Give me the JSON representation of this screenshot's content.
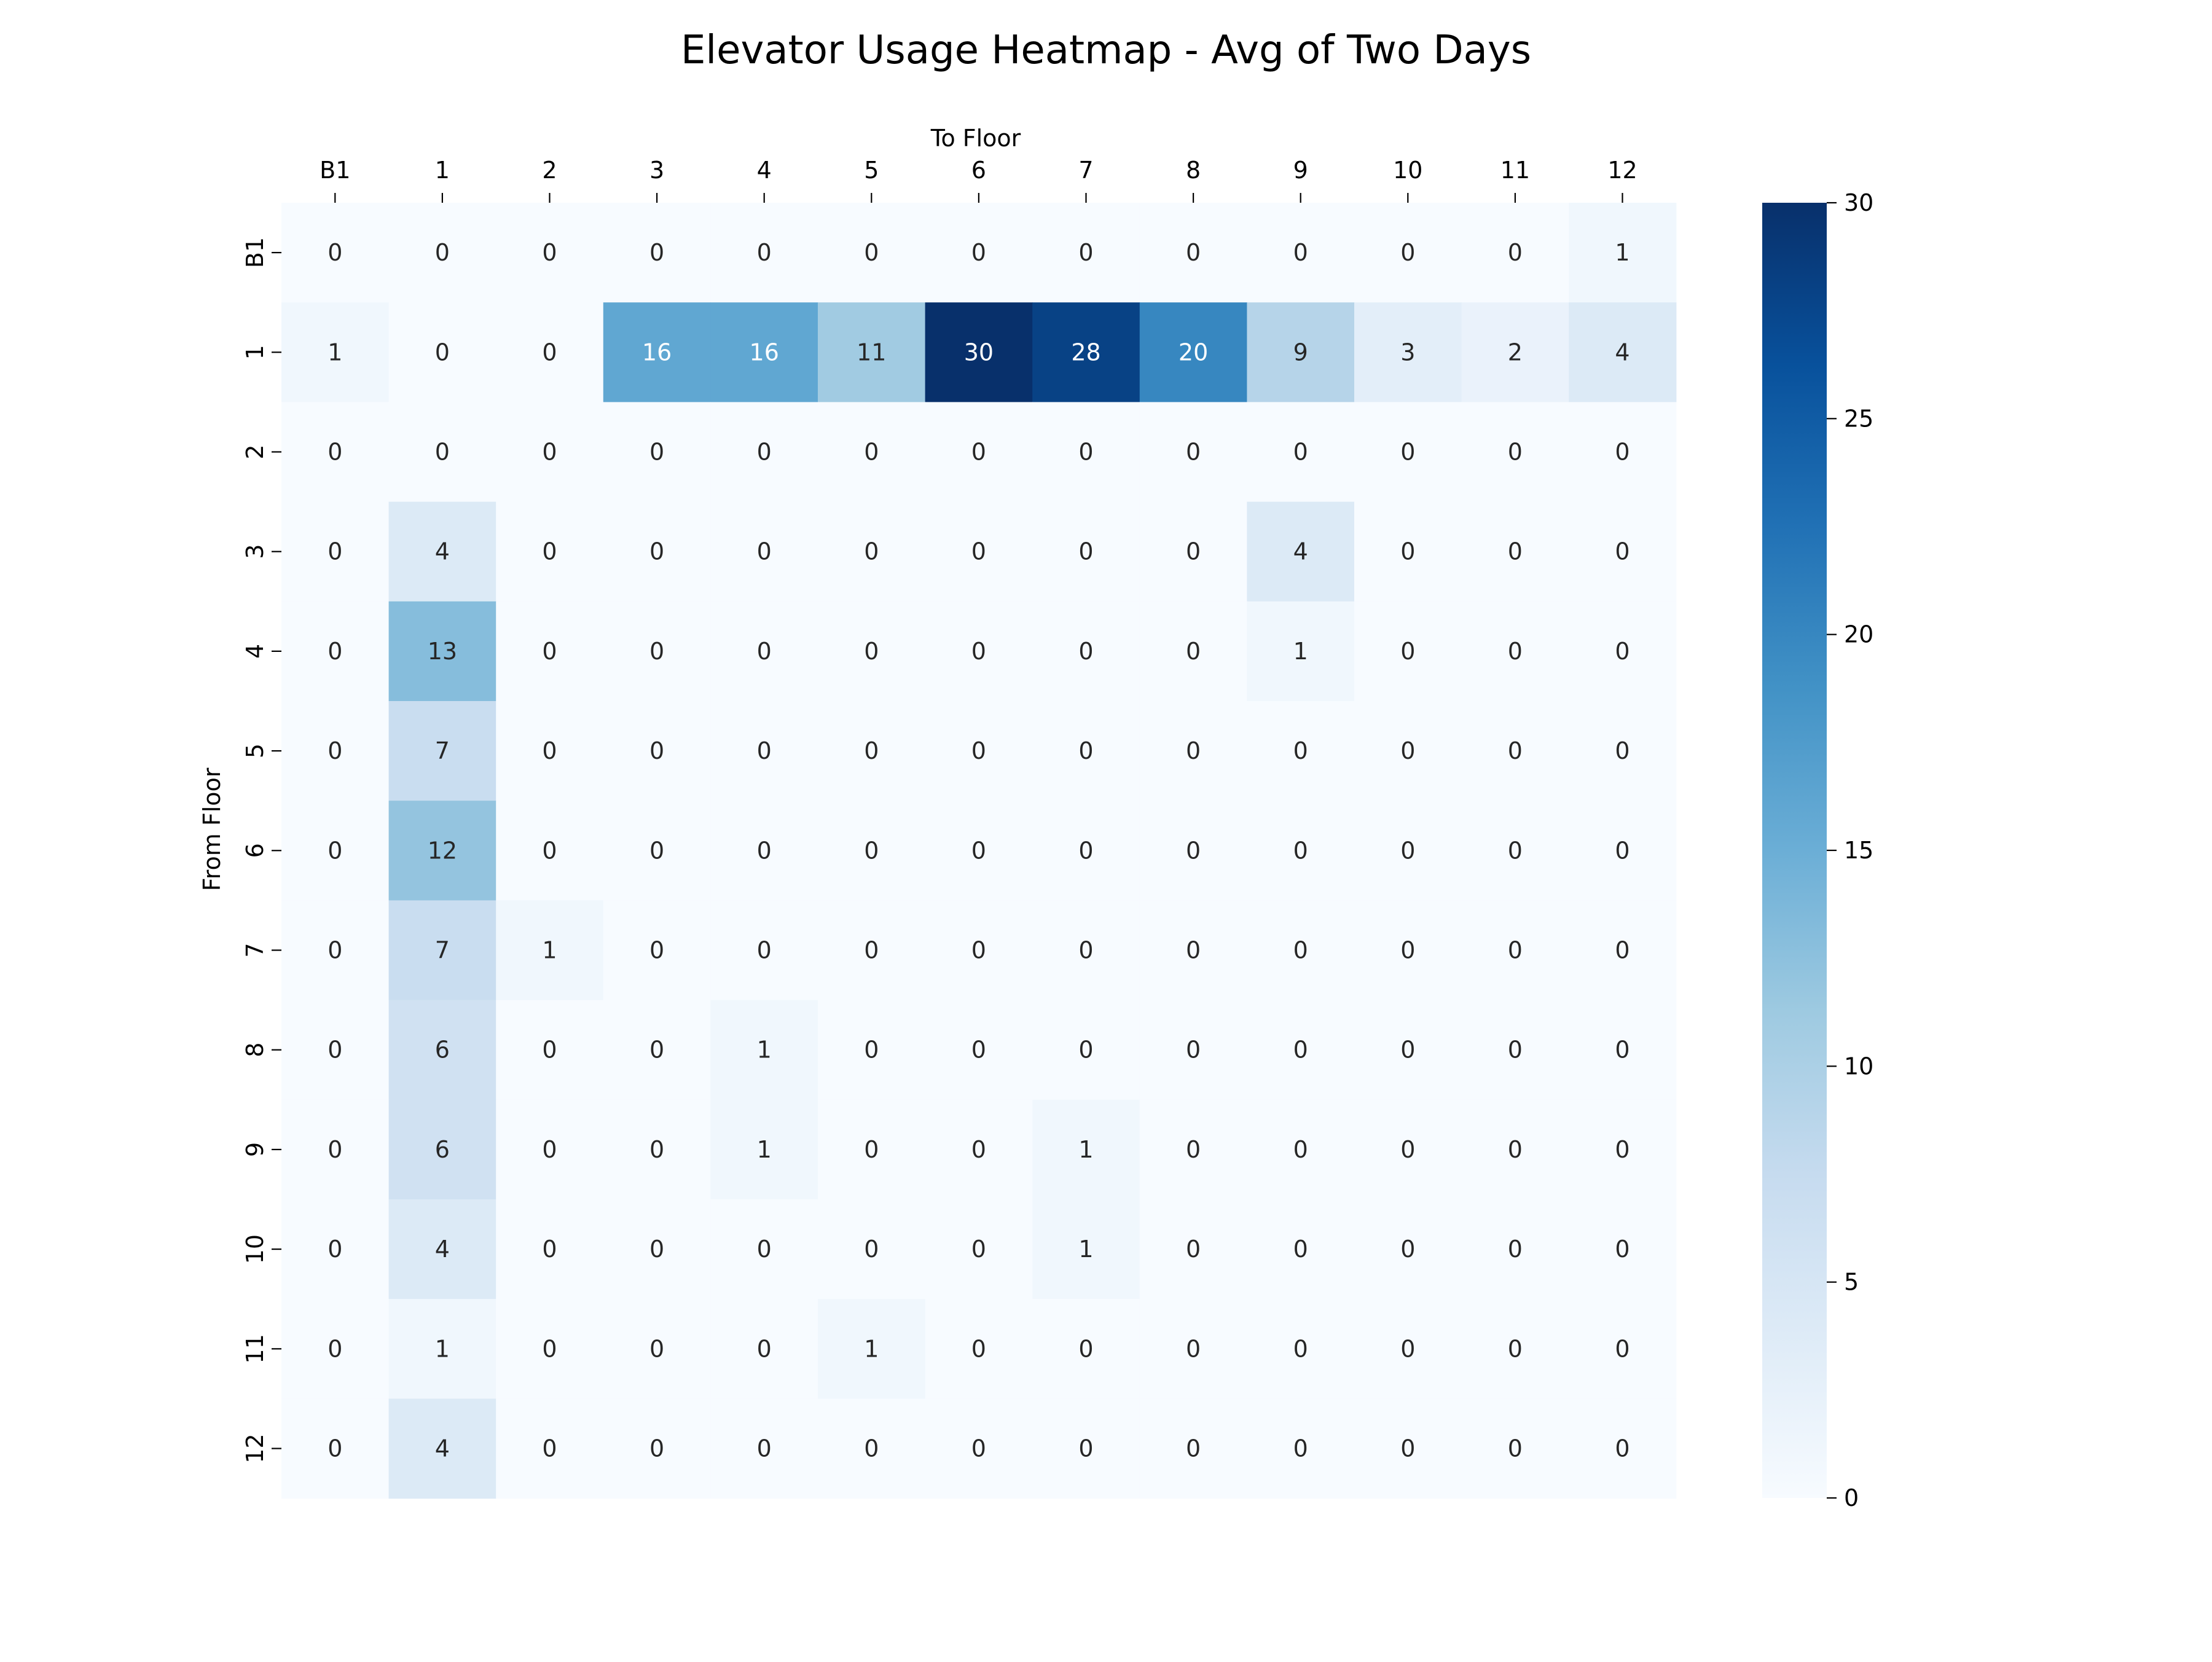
{
  "chart_data": {
    "type": "heatmap",
    "title": "Elevator Usage Heatmap - Avg of Two Days",
    "xlabel": "To Floor",
    "ylabel": "From Floor",
    "x_categories": [
      "B1",
      "1",
      "2",
      "3",
      "4",
      "5",
      "6",
      "7",
      "8",
      "9",
      "10",
      "11",
      "12"
    ],
    "y_categories": [
      "B1",
      "1",
      "2",
      "3",
      "4",
      "5",
      "6",
      "7",
      "8",
      "9",
      "10",
      "11",
      "12"
    ],
    "values": [
      [
        0,
        0,
        0,
        0,
        0,
        0,
        0,
        0,
        0,
        0,
        0,
        0,
        1
      ],
      [
        1,
        0,
        0,
        16,
        16,
        11,
        30,
        28,
        20,
        9,
        3,
        2,
        4
      ],
      [
        0,
        0,
        0,
        0,
        0,
        0,
        0,
        0,
        0,
        0,
        0,
        0,
        0
      ],
      [
        0,
        4,
        0,
        0,
        0,
        0,
        0,
        0,
        0,
        4,
        0,
        0,
        0
      ],
      [
        0,
        13,
        0,
        0,
        0,
        0,
        0,
        0,
        0,
        1,
        0,
        0,
        0
      ],
      [
        0,
        7,
        0,
        0,
        0,
        0,
        0,
        0,
        0,
        0,
        0,
        0,
        0
      ],
      [
        0,
        12,
        0,
        0,
        0,
        0,
        0,
        0,
        0,
        0,
        0,
        0,
        0
      ],
      [
        0,
        7,
        1,
        0,
        0,
        0,
        0,
        0,
        0,
        0,
        0,
        0,
        0
      ],
      [
        0,
        6,
        0,
        0,
        1,
        0,
        0,
        0,
        0,
        0,
        0,
        0,
        0
      ],
      [
        0,
        6,
        0,
        0,
        1,
        0,
        0,
        1,
        0,
        0,
        0,
        0,
        0
      ],
      [
        0,
        4,
        0,
        0,
        0,
        0,
        0,
        1,
        0,
        0,
        0,
        0,
        0
      ],
      [
        0,
        1,
        0,
        0,
        0,
        1,
        0,
        0,
        0,
        0,
        0,
        0,
        0
      ],
      [
        0,
        4,
        0,
        0,
        0,
        0,
        0,
        0,
        0,
        0,
        0,
        0,
        0
      ]
    ],
    "colorbar": {
      "range": [
        0,
        30
      ],
      "ticks": [
        0,
        5,
        10,
        15,
        20,
        25,
        30
      ],
      "colormap": "Blues"
    },
    "x_axis_position": "top",
    "grid": false
  }
}
